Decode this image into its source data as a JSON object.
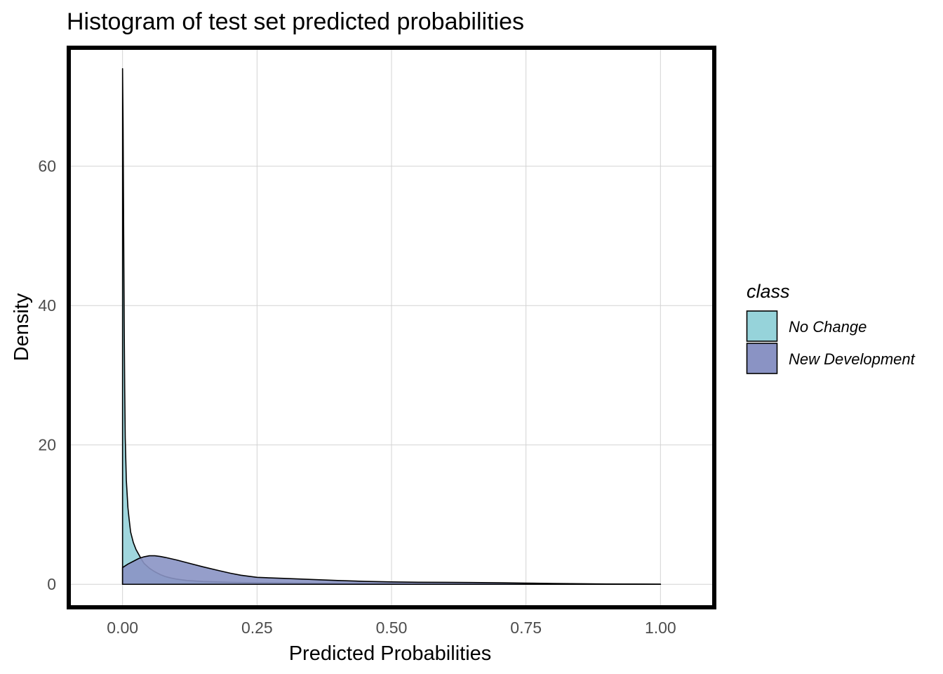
{
  "chart_data": {
    "type": "area",
    "title": "Histogram of test set predicted probabilities",
    "xlabel": "Predicted Probabilities",
    "ylabel": "Density",
    "xlim": [
      -0.1,
      1.1
    ],
    "ylim": [
      -3.3,
      77.0
    ],
    "x_ticks": [
      0.0,
      0.25,
      0.5,
      0.75,
      1.0
    ],
    "x_tick_labels": [
      "0.00",
      "0.25",
      "0.50",
      "0.75",
      "1.00"
    ],
    "y_ticks": [
      0,
      20,
      40,
      60
    ],
    "y_tick_labels": [
      "0",
      "20",
      "40",
      "60"
    ],
    "grid": true,
    "legend": {
      "title": "class",
      "position": "right",
      "entries": [
        {
          "label": "No Change",
          "color": "#96d3da"
        },
        {
          "label": "New Development",
          "color": "#8a93c4"
        }
      ]
    },
    "series": [
      {
        "name": "No Change",
        "color": "#96d3da",
        "x": [
          0.0,
          0.001,
          0.002,
          0.003,
          0.004,
          0.005,
          0.007,
          0.01,
          0.012,
          0.015,
          0.02,
          0.025,
          0.03,
          0.035,
          0.04,
          0.05,
          0.06,
          0.07,
          0.08,
          0.09,
          0.1,
          0.12,
          0.15,
          0.2,
          0.25,
          0.3,
          0.4,
          0.5,
          0.6,
          0.7,
          0.8,
          0.9,
          1.0
        ],
        "values": [
          74.0,
          66.0,
          52.0,
          38.0,
          28.0,
          21.0,
          15.0,
          11.0,
          9.5,
          7.5,
          6.0,
          5.0,
          4.3,
          3.6,
          3.0,
          2.3,
          1.8,
          1.4,
          1.1,
          0.9,
          0.75,
          0.55,
          0.4,
          0.28,
          0.22,
          0.18,
          0.12,
          0.08,
          0.06,
          0.04,
          0.03,
          0.02,
          0.01
        ]
      },
      {
        "name": "New Development",
        "color": "#8a93c4",
        "x": [
          0.0,
          0.01,
          0.02,
          0.03,
          0.04,
          0.05,
          0.06,
          0.07,
          0.08,
          0.1,
          0.12,
          0.15,
          0.18,
          0.2,
          0.22,
          0.25,
          0.3,
          0.35,
          0.4,
          0.45,
          0.5,
          0.55,
          0.6,
          0.65,
          0.7,
          0.75,
          0.8,
          0.85,
          0.9,
          0.95,
          1.0
        ],
        "values": [
          2.4,
          2.9,
          3.3,
          3.7,
          3.95,
          4.1,
          4.1,
          4.0,
          3.85,
          3.5,
          3.1,
          2.5,
          1.95,
          1.6,
          1.3,
          1.0,
          0.85,
          0.7,
          0.55,
          0.42,
          0.35,
          0.3,
          0.28,
          0.26,
          0.22,
          0.17,
          0.12,
          0.08,
          0.05,
          0.03,
          0.02
        ]
      }
    ]
  }
}
